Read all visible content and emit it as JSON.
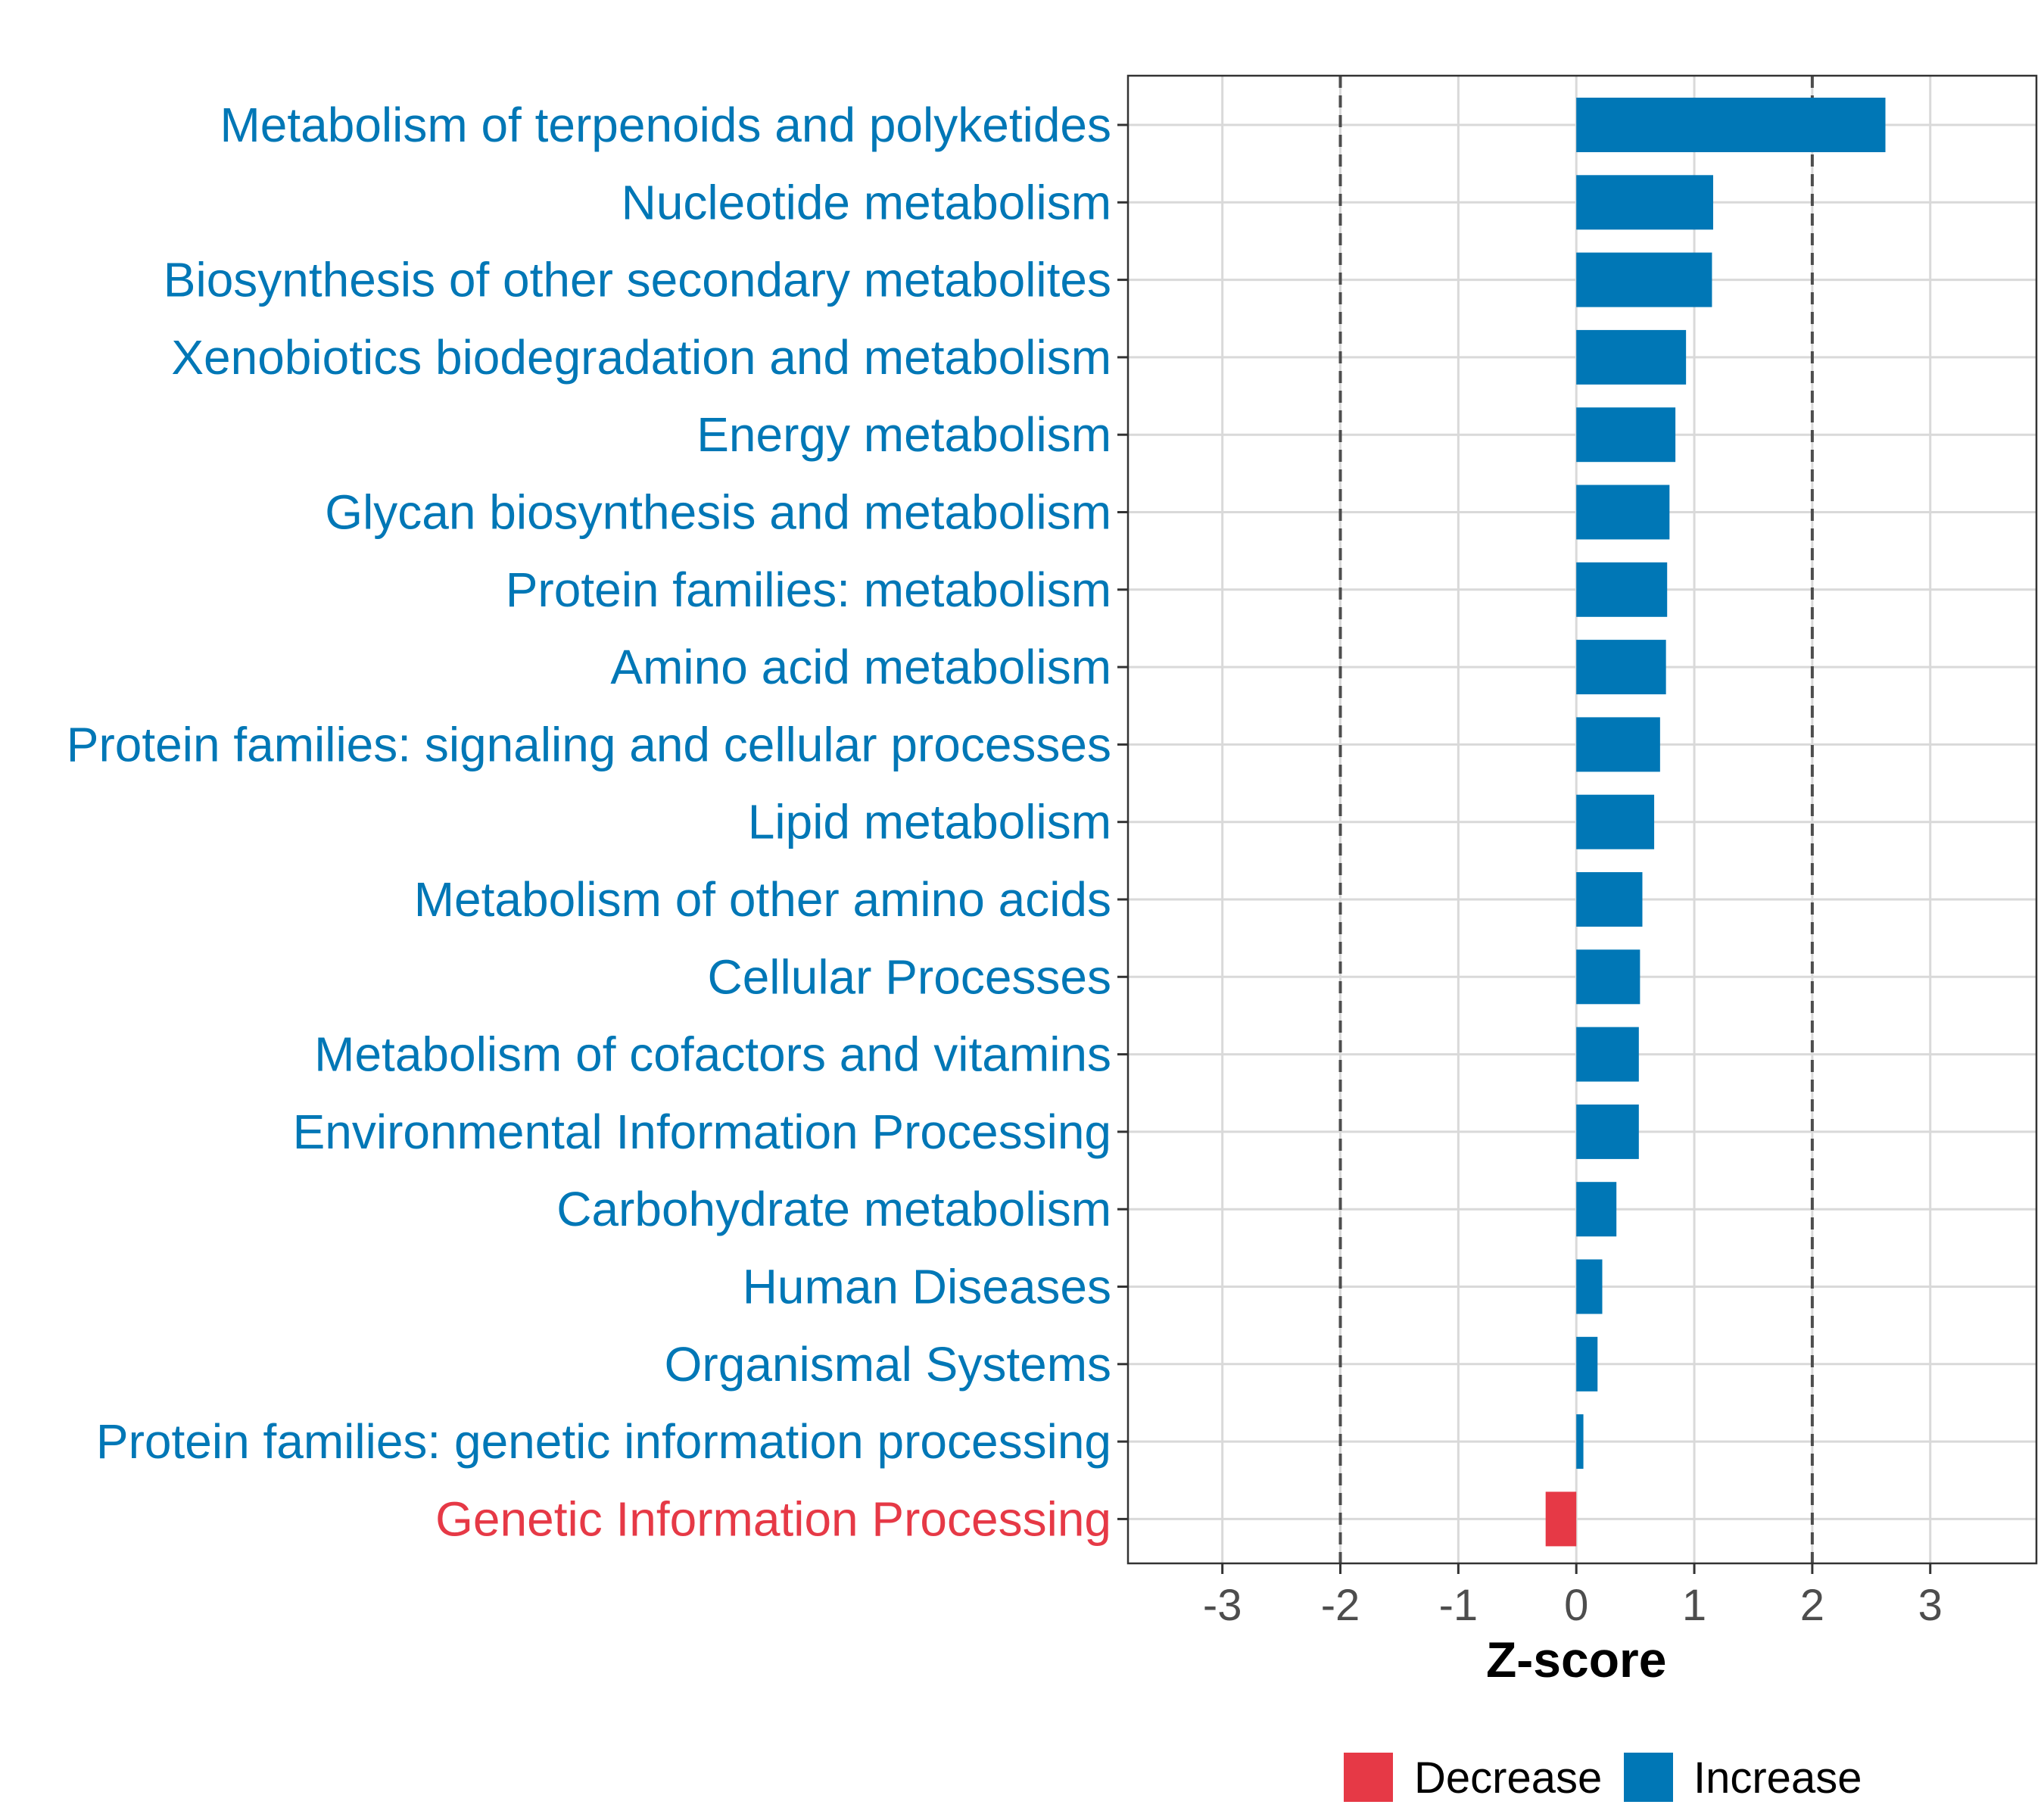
{
  "chart_data": {
    "type": "bar",
    "orientation": "horizontal",
    "title": "",
    "xlabel": "Z-score",
    "ylabel": "",
    "xlim": [
      -3.8,
      3.9
    ],
    "xticks": [
      -3,
      -2,
      -1,
      0,
      1,
      2,
      3
    ],
    "xtick_labels": [
      "-3",
      "-2",
      "-1",
      "0",
      "1",
      "2",
      "3"
    ],
    "threshold_lines": [
      -2,
      2
    ],
    "grid": true,
    "colors": {
      "Decrease": "#E63946",
      "Increase": "#0077B6"
    },
    "categories": [
      "Metabolism of terpenoids and polyketides",
      "Nucleotide metabolism",
      "Biosynthesis of other secondary metabolites",
      "Xenobiotics biodegradation and metabolism",
      "Energy metabolism",
      "Glycan biosynthesis and metabolism",
      "Protein families: metabolism",
      "Amino acid metabolism",
      "Protein families: signaling and cellular processes",
      "Lipid metabolism",
      "Metabolism of other amino acids",
      "Cellular Processes",
      "Metabolism of cofactors and vitamins",
      "Environmental Information Processing",
      "Carbohydrate metabolism",
      "Human Diseases",
      "Organismal Systems",
      "Protein families: genetic information processing",
      "Genetic Information Processing"
    ],
    "values": [
      2.62,
      1.16,
      1.15,
      0.93,
      0.84,
      0.79,
      0.77,
      0.76,
      0.71,
      0.66,
      0.56,
      0.54,
      0.53,
      0.53,
      0.34,
      0.22,
      0.18,
      0.06,
      -0.26
    ],
    "groups": [
      "Increase",
      "Increase",
      "Increase",
      "Increase",
      "Increase",
      "Increase",
      "Increase",
      "Increase",
      "Increase",
      "Increase",
      "Increase",
      "Increase",
      "Increase",
      "Increase",
      "Increase",
      "Increase",
      "Increase",
      "Increase",
      "Decrease"
    ],
    "legend": {
      "position": "bottom",
      "entries": [
        {
          "label": "Decrease",
          "color": "#E63946"
        },
        {
          "label": "Increase",
          "color": "#0077B6"
        }
      ]
    }
  }
}
